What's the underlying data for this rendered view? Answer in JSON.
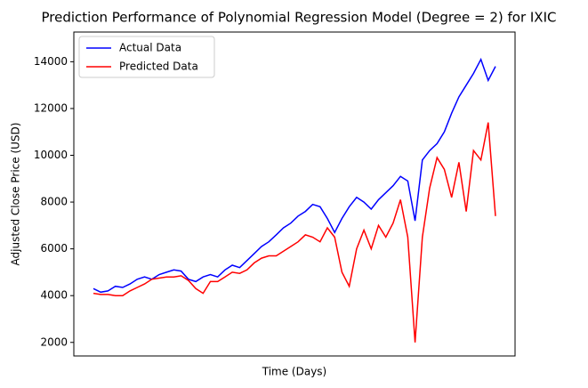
{
  "chart_data": {
    "type": "line",
    "title": "Prediction Performance of Polynomial Regression Model (Degree = 2) for IXIC",
    "xlabel": "Time (Days)",
    "ylabel": "Adjusted Close Price (USD)",
    "ylim": [
      1420,
      15270
    ],
    "yticks": [
      2000,
      4000,
      6000,
      8000,
      10000,
      12000,
      14000
    ],
    "legend": "upper left",
    "series": [
      {
        "name": "Actual Data",
        "color": "#0000ff",
        "values": [
          4300,
          4150,
          4200,
          4400,
          4350,
          4500,
          4700,
          4800,
          4700,
          4900,
          5000,
          5100,
          5050,
          4700,
          4600,
          4800,
          4900,
          4800,
          5100,
          5300,
          5200,
          5500,
          5800,
          6100,
          6300,
          6600,
          6900,
          7100,
          7400,
          7600,
          7900,
          7800,
          7300,
          6700,
          7300,
          7800,
          8200,
          8000,
          7700,
          8100,
          8400,
          8700,
          9100,
          8900,
          7200,
          9800,
          10200,
          10500,
          11000,
          11800,
          12500,
          13000,
          13500,
          14100,
          13200,
          13800
        ]
      },
      {
        "name": "Predicted Data",
        "color": "#ff0000",
        "values": [
          4100,
          4050,
          4050,
          4000,
          4000,
          4200,
          4350,
          4500,
          4700,
          4750,
          4800,
          4800,
          4850,
          4650,
          4300,
          4100,
          4600,
          4600,
          4800,
          5000,
          4950,
          5100,
          5400,
          5600,
          5700,
          5700,
          5900,
          6100,
          6300,
          6600,
          6500,
          6300,
          6900,
          6500,
          5000,
          4400,
          6000,
          6800,
          6000,
          7000,
          6500,
          7100,
          8100,
          6500,
          2000,
          6500,
          8600,
          9900,
          9400,
          8200,
          9700,
          7600,
          10200,
          9800,
          11400,
          7400
        ]
      }
    ]
  }
}
